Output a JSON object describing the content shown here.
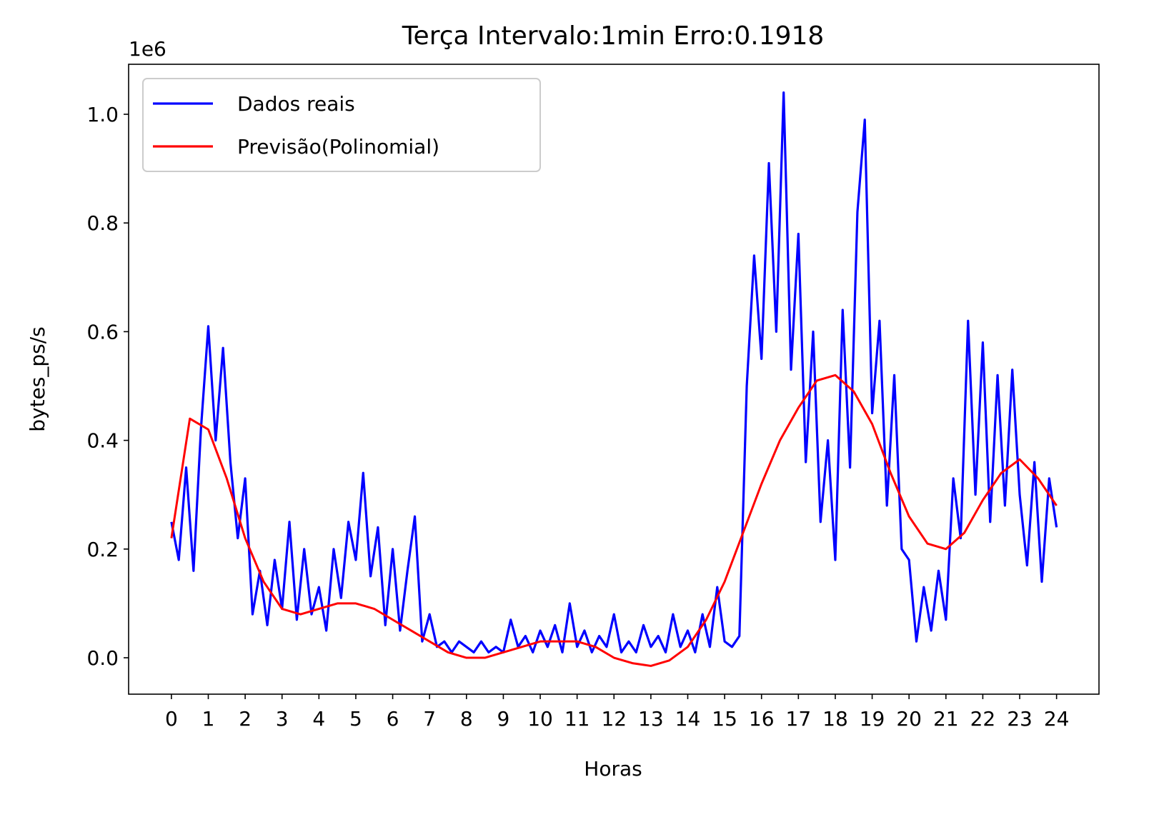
{
  "chart_data": {
    "type": "line",
    "title": "Terça Intervalo:1min Erro:0.1918",
    "x_label": "Horas",
    "y_label": "bytes_ps/s",
    "y_offset_label": "1e6",
    "xlim": [
      -1.16,
      25.15
    ],
    "ylim": [
      -0.067,
      1.092
    ],
    "xticks": [
      0,
      1,
      2,
      3,
      4,
      5,
      6,
      7,
      8,
      9,
      10,
      11,
      12,
      13,
      14,
      15,
      16,
      17,
      18,
      19,
      20,
      21,
      22,
      23,
      24
    ],
    "yticks": [
      {
        "value": 0,
        "label": "0.0"
      },
      0.2,
      0.4,
      0.6,
      0.8,
      {
        "value": 1,
        "label": "1.0"
      }
    ],
    "legend": "upper left",
    "grid": false,
    "series": [
      {
        "name": "Dados reais",
        "color": "#0000ff",
        "x": [
          0,
          0.2,
          0.4,
          0.6,
          0.8,
          1,
          1.2,
          1.4,
          1.6,
          1.8,
          2,
          2.2,
          2.4,
          2.6,
          2.8,
          3,
          3.2,
          3.4,
          3.6,
          3.8,
          4,
          4.2,
          4.4,
          4.6,
          4.8,
          5,
          5.2,
          5.4,
          5.6,
          5.8,
          6,
          6.2,
          6.4,
          6.6,
          6.8,
          7,
          7.2,
          7.4,
          7.6,
          7.8,
          8,
          8.2,
          8.4,
          8.6,
          8.8,
          9,
          9.2,
          9.4,
          9.6,
          9.8,
          10,
          10.2,
          10.4,
          10.6,
          10.8,
          11,
          11.2,
          11.4,
          11.6,
          11.8,
          12,
          12.2,
          12.4,
          12.6,
          12.8,
          13,
          13.2,
          13.4,
          13.6,
          13.8,
          14,
          14.2,
          14.4,
          14.6,
          14.8,
          15,
          15.2,
          15.4,
          15.6,
          15.8,
          16,
          16.2,
          16.4,
          16.6,
          16.8,
          17,
          17.2,
          17.4,
          17.6,
          17.8,
          18,
          18.2,
          18.4,
          18.6,
          18.8,
          19,
          19.2,
          19.4,
          19.6,
          19.8,
          20,
          20.2,
          20.4,
          20.6,
          20.8,
          21,
          21.2,
          21.4,
          21.6,
          21.8,
          22,
          22.2,
          22.4,
          22.6,
          22.8,
          23,
          23.2,
          23.4,
          23.6,
          23.8,
          24
        ],
        "values": [
          0.25,
          0.18,
          0.35,
          0.16,
          0.42,
          0.61,
          0.4,
          0.57,
          0.36,
          0.22,
          0.33,
          0.08,
          0.16,
          0.06,
          0.18,
          0.09,
          0.25,
          0.07,
          0.2,
          0.08,
          0.13,
          0.05,
          0.2,
          0.11,
          0.25,
          0.18,
          0.34,
          0.15,
          0.24,
          0.06,
          0.2,
          0.05,
          0.16,
          0.26,
          0.03,
          0.08,
          0.02,
          0.03,
          0.01,
          0.03,
          0.02,
          0.01,
          0.03,
          0.01,
          0.02,
          0.01,
          0.07,
          0.02,
          0.04,
          0.01,
          0.05,
          0.02,
          0.06,
          0.01,
          0.1,
          0.02,
          0.05,
          0.01,
          0.04,
          0.02,
          0.08,
          0.01,
          0.03,
          0.01,
          0.06,
          0.02,
          0.04,
          0.01,
          0.08,
          0.02,
          0.05,
          0.01,
          0.08,
          0.02,
          0.13,
          0.03,
          0.02,
          0.04,
          0.5,
          0.74,
          0.55,
          0.91,
          0.6,
          1.04,
          0.53,
          0.78,
          0.36,
          0.6,
          0.25,
          0.4,
          0.18,
          0.64,
          0.35,
          0.82,
          0.99,
          0.45,
          0.62,
          0.28,
          0.52,
          0.2,
          0.18,
          0.03,
          0.13,
          0.05,
          0.16,
          0.07,
          0.33,
          0.22,
          0.62,
          0.3,
          0.58,
          0.25,
          0.52,
          0.28,
          0.53,
          0.3,
          0.17,
          0.36,
          0.14,
          0.33,
          0.24
        ]
      },
      {
        "name": "Previsão(Polinomial)",
        "color": "#ff0000",
        "x": [
          0,
          0.5,
          1,
          1.5,
          2,
          2.5,
          3,
          3.5,
          4,
          4.5,
          5,
          5.5,
          6,
          6.5,
          7,
          7.5,
          8,
          8.5,
          9,
          9.5,
          10,
          10.5,
          11,
          11.5,
          12,
          12.5,
          13,
          13.5,
          14,
          14.5,
          15,
          15.5,
          16,
          16.5,
          17,
          17.5,
          18,
          18.5,
          19,
          19.5,
          20,
          20.5,
          21,
          21.5,
          22,
          22.5,
          23,
          23.5,
          24
        ],
        "values": [
          0.22,
          0.44,
          0.42,
          0.33,
          0.22,
          0.14,
          0.09,
          0.08,
          0.09,
          0.1,
          0.1,
          0.09,
          0.07,
          0.05,
          0.03,
          0.01,
          0.0,
          0.0,
          0.01,
          0.02,
          0.03,
          0.03,
          0.03,
          0.02,
          0.0,
          -0.01,
          -0.015,
          -0.005,
          0.02,
          0.07,
          0.14,
          0.23,
          0.32,
          0.4,
          0.46,
          0.51,
          0.52,
          0.49,
          0.43,
          0.34,
          0.26,
          0.21,
          0.2,
          0.23,
          0.29,
          0.34,
          0.365,
          0.33,
          0.28
        ]
      }
    ]
  }
}
